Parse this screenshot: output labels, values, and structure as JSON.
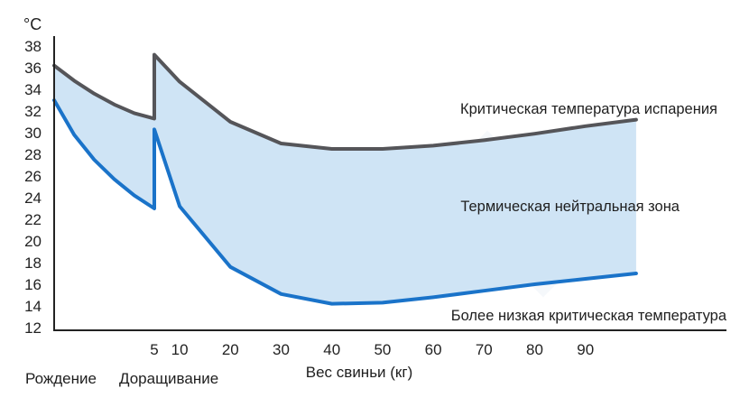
{
  "chart_data": {
    "type": "line",
    "y_unit": "°C",
    "xlabel": "Вес свиньи (кг)",
    "ylim": [
      12,
      38
    ],
    "y_ticks": [
      38,
      36,
      34,
      32,
      30,
      28,
      26,
      24,
      22,
      20,
      18,
      16,
      14,
      12
    ],
    "x_ticks": [
      5,
      10,
      20,
      30,
      40,
      50,
      60,
      70,
      80,
      90
    ],
    "x_stage_labels": {
      "birth": "Рождение",
      "weaning": "Доращивание"
    },
    "series": [
      {
        "name": "Критическая температура испарения",
        "color": "#555559",
        "points": [
          [
            0,
            36.2
          ],
          [
            1,
            34.8
          ],
          [
            2,
            33.6
          ],
          [
            3,
            32.6
          ],
          [
            4,
            31.8
          ],
          [
            5,
            31.3
          ],
          [
            5,
            37.2
          ],
          [
            10,
            34.7
          ],
          [
            20,
            31.0
          ],
          [
            30,
            29.0
          ],
          [
            40,
            28.5
          ],
          [
            50,
            28.5
          ],
          [
            60,
            28.8
          ],
          [
            70,
            29.3
          ],
          [
            80,
            29.9
          ],
          [
            90,
            30.6
          ],
          [
            100,
            31.2
          ]
        ]
      },
      {
        "name": "Более низкая критическая температура",
        "color": "#1a73c9",
        "points": [
          [
            0,
            33.0
          ],
          [
            1,
            29.8
          ],
          [
            2,
            27.5
          ],
          [
            3,
            25.7
          ],
          [
            4,
            24.2
          ],
          [
            5,
            23.0
          ],
          [
            5,
            30.3
          ],
          [
            10,
            23.2
          ],
          [
            20,
            17.6
          ],
          [
            30,
            15.1
          ],
          [
            40,
            14.2
          ],
          [
            50,
            14.3
          ],
          [
            60,
            14.8
          ],
          [
            70,
            15.4
          ],
          [
            80,
            16.0
          ],
          [
            90,
            16.5
          ],
          [
            100,
            17.0
          ]
        ]
      }
    ],
    "band_label": "Термическая нейтральная зона",
    "band_color": "#cfe4f5"
  }
}
